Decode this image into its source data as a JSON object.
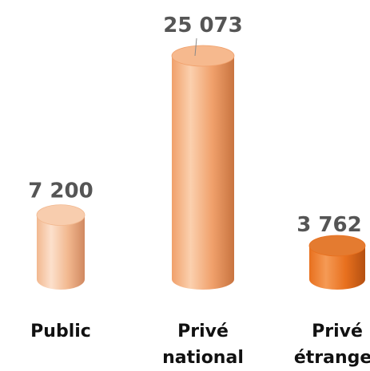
{
  "chart_data": {
    "type": "bar",
    "style": "3d-cylinder",
    "categories": [
      [
        "Public"
      ],
      [
        "Privé",
        "national"
      ],
      [
        "Privé",
        "étranger"
      ]
    ],
    "values": [
      7200,
      25073,
      3762
    ],
    "value_labels": [
      "7 200",
      "25 073",
      "3 762"
    ],
    "colors": [
      {
        "light": "#FCE0CC",
        "mid": "#F2B88F",
        "dark": "#D08860",
        "top": "#F8CDAE"
      },
      {
        "light": "#FBD0AE",
        "mid": "#F0A06B",
        "dark": "#C87440",
        "top": "#F6B98E"
      },
      {
        "light": "#F59A55",
        "mid": "#E8701E",
        "dark": "#B45011",
        "top": "#E47B30"
      }
    ],
    "title": "",
    "xlabel": "",
    "ylabel": "",
    "ylim": [
      0,
      25073
    ],
    "grid": false,
    "legend": "none"
  }
}
